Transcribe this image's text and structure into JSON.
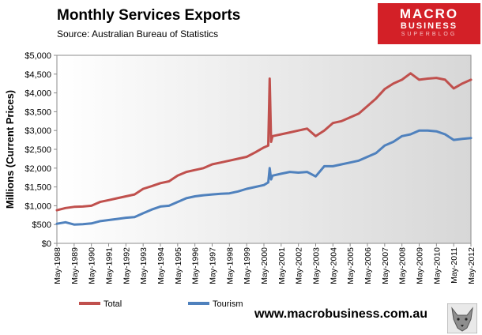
{
  "title": "Monthly  Services Exports",
  "source": "Source:  Australian Bureau of Statistics",
  "logo": {
    "line1": "MACRO",
    "line2": "BUSINESS",
    "line3": "SUPERBLOG"
  },
  "website": "www.macrobusiness.com.au",
  "icons": {
    "logo": "wolf-icon"
  },
  "colors": {
    "total": "#c0504d",
    "tourism": "#4f81bd",
    "logo_background": "#d32027"
  },
  "chart_data": {
    "type": "line",
    "ylabel": "Millions (Current Prices)",
    "ylim": [
      0,
      5000
    ],
    "y_ticks": [
      0,
      500,
      1000,
      1500,
      2000,
      2500,
      3000,
      3500,
      4000,
      4500,
      5000
    ],
    "y_tick_labels": [
      "$0",
      "$500",
      "$1,000",
      "$1,500",
      "$2,000",
      "$2,500",
      "$3,000",
      "$3,500",
      "$4,000",
      "$4,500",
      "$5,000"
    ],
    "x_start": "May-1988",
    "x_end": "May-2012",
    "x_tick_labels": [
      "May-1988",
      "May-1989",
      "May-1990",
      "May-1991",
      "May-1992",
      "May-1993",
      "May-1994",
      "May-1995",
      "May-1996",
      "May-1997",
      "May-1998",
      "May-1999",
      "May-2000",
      "May-2001",
      "May-2002",
      "May-2003",
      "May-2004",
      "May-2005",
      "May-2006",
      "May-2007",
      "May-2008",
      "May-2009",
      "May-2010",
      "May-2011",
      "May-2012"
    ],
    "grid": false,
    "legend_position": "bottom-left",
    "series": [
      {
        "name": "Total",
        "color": "#c0504d",
        "points": [
          [
            "May-1988",
            880
          ],
          [
            "Nov-1988",
            940
          ],
          [
            "May-1989",
            970
          ],
          [
            "Nov-1989",
            980
          ],
          [
            "May-1990",
            1000
          ],
          [
            "Nov-1990",
            1100
          ],
          [
            "May-1991",
            1150
          ],
          [
            "Nov-1991",
            1200
          ],
          [
            "May-1992",
            1250
          ],
          [
            "Nov-1992",
            1300
          ],
          [
            "May-1993",
            1450
          ],
          [
            "Nov-1993",
            1520
          ],
          [
            "May-1994",
            1600
          ],
          [
            "Nov-1994",
            1650
          ],
          [
            "May-1995",
            1800
          ],
          [
            "Nov-1995",
            1900
          ],
          [
            "May-1996",
            1950
          ],
          [
            "Nov-1996",
            2000
          ],
          [
            "May-1997",
            2100
          ],
          [
            "Nov-1997",
            2150
          ],
          [
            "May-1998",
            2200
          ],
          [
            "Nov-1998",
            2250
          ],
          [
            "May-1999",
            2300
          ],
          [
            "Nov-1999",
            2420
          ],
          [
            "May-2000",
            2550
          ],
          [
            "Aug-2000",
            2600
          ],
          [
            "Sep-2000",
            4380
          ],
          [
            "Oct-2000",
            2700
          ],
          [
            "Nov-2000",
            2850
          ],
          [
            "May-2001",
            2900
          ],
          [
            "Nov-2001",
            2950
          ],
          [
            "May-2002",
            3000
          ],
          [
            "Nov-2002",
            3050
          ],
          [
            "May-2003",
            2850
          ],
          [
            "Nov-2003",
            3000
          ],
          [
            "May-2004",
            3200
          ],
          [
            "Nov-2004",
            3250
          ],
          [
            "May-2005",
            3350
          ],
          [
            "Nov-2005",
            3450
          ],
          [
            "May-2006",
            3650
          ],
          [
            "Nov-2006",
            3850
          ],
          [
            "May-2007",
            4100
          ],
          [
            "Nov-2007",
            4250
          ],
          [
            "May-2008",
            4350
          ],
          [
            "Nov-2008",
            4520
          ],
          [
            "May-2009",
            4350
          ],
          [
            "Nov-2009",
            4380
          ],
          [
            "May-2010",
            4400
          ],
          [
            "Nov-2010",
            4350
          ],
          [
            "May-2011",
            4120
          ],
          [
            "Nov-2011",
            4250
          ],
          [
            "May-2012",
            4350
          ]
        ]
      },
      {
        "name": "Tourism",
        "color": "#4f81bd",
        "points": [
          [
            "May-1988",
            520
          ],
          [
            "Nov-1988",
            560
          ],
          [
            "May-1989",
            500
          ],
          [
            "Nov-1989",
            510
          ],
          [
            "May-1990",
            530
          ],
          [
            "Nov-1990",
            590
          ],
          [
            "May-1991",
            620
          ],
          [
            "Nov-1991",
            650
          ],
          [
            "May-1992",
            680
          ],
          [
            "Nov-1992",
            700
          ],
          [
            "May-1993",
            800
          ],
          [
            "Nov-1993",
            900
          ],
          [
            "May-1994",
            980
          ],
          [
            "Nov-1994",
            1000
          ],
          [
            "May-1995",
            1100
          ],
          [
            "Nov-1995",
            1200
          ],
          [
            "May-1996",
            1250
          ],
          [
            "Nov-1996",
            1280
          ],
          [
            "May-1997",
            1300
          ],
          [
            "Nov-1997",
            1320
          ],
          [
            "May-1998",
            1330
          ],
          [
            "Nov-1998",
            1380
          ],
          [
            "May-1999",
            1450
          ],
          [
            "Nov-1999",
            1500
          ],
          [
            "May-2000",
            1550
          ],
          [
            "Aug-2000",
            1620
          ],
          [
            "Sep-2000",
            2000
          ],
          [
            "Oct-2000",
            1700
          ],
          [
            "Nov-2000",
            1800
          ],
          [
            "May-2001",
            1850
          ],
          [
            "Nov-2001",
            1900
          ],
          [
            "May-2002",
            1880
          ],
          [
            "Nov-2002",
            1900
          ],
          [
            "May-2003",
            1780
          ],
          [
            "Nov-2003",
            2050
          ],
          [
            "May-2004",
            2050
          ],
          [
            "Nov-2004",
            2100
          ],
          [
            "May-2005",
            2150
          ],
          [
            "Nov-2005",
            2200
          ],
          [
            "May-2006",
            2300
          ],
          [
            "Nov-2006",
            2400
          ],
          [
            "May-2007",
            2600
          ],
          [
            "Nov-2007",
            2700
          ],
          [
            "May-2008",
            2850
          ],
          [
            "Nov-2008",
            2900
          ],
          [
            "May-2009",
            3000
          ],
          [
            "Nov-2009",
            3000
          ],
          [
            "May-2010",
            2980
          ],
          [
            "Nov-2010",
            2900
          ],
          [
            "May-2011",
            2750
          ],
          [
            "Nov-2011",
            2780
          ],
          [
            "May-2012",
            2800
          ]
        ]
      }
    ]
  }
}
